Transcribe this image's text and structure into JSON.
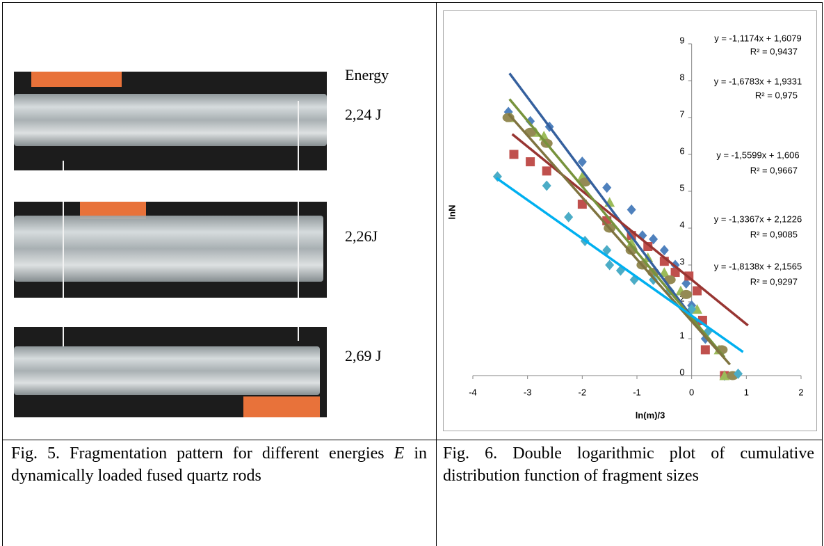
{
  "figure5": {
    "energy_header": "Energy",
    "energies": [
      "2,24 J",
      "2,26J",
      "2,69 J"
    ],
    "caption": [
      "Fig. 5. Fragmentation pattern for different energies ",
      "E",
      " in dynamically loaded fused quartz rods"
    ]
  },
  "figure6": {
    "caption": "Fig. 6. Double logarithmic plot of cumulative distribution function of fragment sizes"
  },
  "chart_data": {
    "type": "scatter",
    "x_label": "ln(m)/3",
    "y_label": "lnN",
    "xlim": [
      -4,
      2
    ],
    "ylim": [
      0,
      9
    ],
    "xticks": [
      -4,
      -3,
      -2,
      -1,
      0,
      1,
      2
    ],
    "yticks": [
      0,
      1,
      2,
      3,
      4,
      5,
      6,
      7,
      8,
      9
    ],
    "annotations": [
      [
        "y = -1,1174x + 1,6079",
        "R² = 0,9437"
      ],
      [
        "y = -1,6783x + 1,9331",
        "R² = 0,975"
      ],
      [
        "y = -1,5599x + 1,606",
        "R² = 0,9667"
      ],
      [
        "y = -1,3367x + 2,1226",
        "R² = 0,9085"
      ],
      [
        "y = -1,8138x + 2,1565",
        "R² = 0,9297"
      ]
    ],
    "series": [
      {
        "marker": "diamond",
        "color": "#4f81bd",
        "line_color": "#35609e",
        "x": [
          -3.35,
          -2.95,
          -2.6,
          -2.0,
          -1.55,
          -1.1,
          -0.9,
          -0.7,
          -0.5,
          -0.3,
          -0.1,
          0.0,
          0.1,
          0.25,
          0.6
        ],
        "values": [
          7.15,
          6.9,
          6.75,
          5.8,
          5.1,
          4.5,
          3.8,
          3.7,
          3.4,
          3.0,
          2.5,
          1.9,
          1.4,
          1.0,
          0
        ],
        "fit_x": [
          -3.33,
          0.35
        ],
        "fit_y": [
          8.2,
          0.9
        ]
      },
      {
        "marker": "square",
        "color": "#c0504d",
        "line_color": "#983532",
        "x": [
          -3.25,
          -2.95,
          -2.65,
          -2.0,
          -1.55,
          -1.1,
          -0.8,
          -0.5,
          -0.3,
          -0.05,
          0.1,
          0.2,
          0.25,
          0.6
        ],
        "values": [
          6.0,
          5.8,
          5.55,
          4.65,
          4.2,
          3.8,
          3.5,
          3.1,
          2.8,
          2.7,
          2.3,
          1.5,
          0.7,
          0
        ],
        "fit_x": [
          -3.28,
          1.03
        ],
        "fit_y": [
          6.55,
          1.36
        ]
      },
      {
        "marker": "triangle",
        "color": "#9bbb59",
        "line_color": "#77933c",
        "x": [
          -3.3,
          -2.85,
          -2.7,
          -2.0,
          -1.5,
          -1.1,
          -0.8,
          -0.5,
          -0.2,
          0.1,
          0.5,
          0.6
        ],
        "values": [
          7.0,
          6.6,
          6.5,
          5.4,
          4.7,
          3.6,
          3.2,
          2.8,
          2.3,
          1.8,
          0.7,
          0
        ],
        "fit_x": [
          -3.33,
          0.6
        ],
        "fit_y": [
          7.5,
          0.5
        ]
      },
      {
        "marker": "circle",
        "color": "#948a54",
        "line_color": "#7f7440",
        "x": [
          -3.35,
          -2.95,
          -2.65,
          -1.95,
          -1.5,
          -1.1,
          -0.9,
          -0.7,
          -0.4,
          -0.1,
          0.55,
          0.75
        ],
        "values": [
          7.0,
          6.6,
          6.3,
          5.25,
          4.0,
          3.4,
          3.0,
          2.8,
          2.6,
          2.2,
          0.7,
          0
        ],
        "fit_x": [
          -3.35,
          0.7
        ],
        "fit_y": [
          7.1,
          0.3
        ]
      },
      {
        "marker": "diamond",
        "color": "#4bacc6",
        "line_color": "#00b0f0",
        "x": [
          -3.55,
          -2.65,
          -2.25,
          -1.95,
          -1.55,
          -1.5,
          -1.3,
          -1.05,
          -0.7,
          -0.4,
          0.0,
          0.3,
          0.85
        ],
        "values": [
          5.4,
          5.15,
          4.3,
          3.65,
          3.4,
          3.0,
          2.85,
          2.6,
          2.6,
          2.3,
          1.8,
          1.2,
          0.05
        ],
        "fit_x": [
          -3.57,
          0.94
        ],
        "fit_y": [
          5.36,
          0.64
        ]
      }
    ]
  }
}
